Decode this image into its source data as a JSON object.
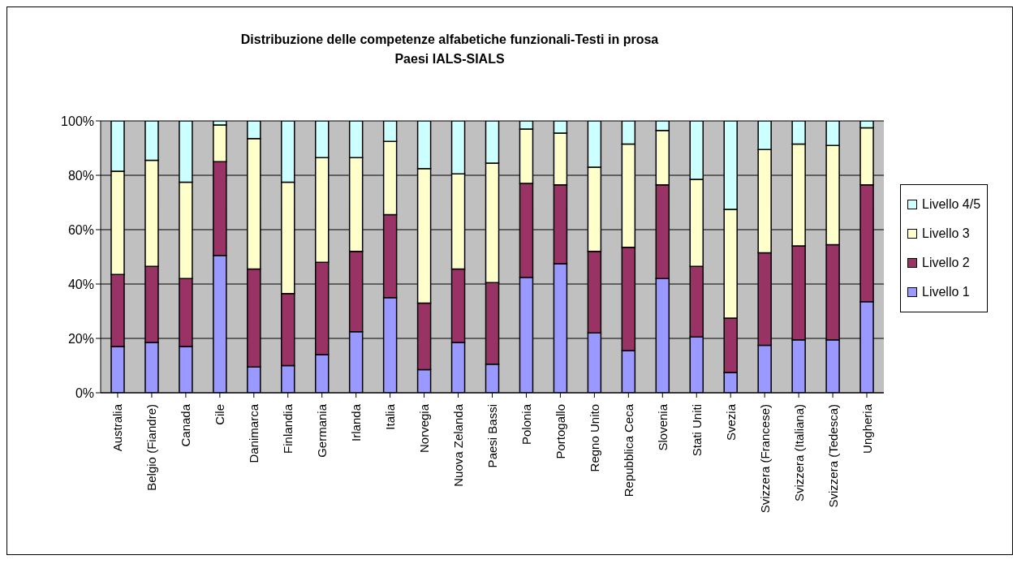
{
  "chart_data": {
    "type": "bar",
    "title": "Distribuzione delle competenze alfabetiche funzionali-Testi in prosa",
    "subtitle": "Paesi IALS-SIALS",
    "stacked": true,
    "categories": [
      "Australia",
      "Belgio (Fiandre)",
      "Canada",
      "Cile",
      "Danimarca",
      "Finlandia",
      "Germania",
      "Irlanda",
      "Italia",
      "Norvegia",
      "Nuova Zelanda",
      "Paesi Bassi",
      "Polonia",
      "Portogallo",
      "Regno Unito",
      "Repubblica Ceca",
      "Slovenia",
      "Stati Uniti",
      "Svezia",
      "Svizzera (Francese)",
      "Svizzera (Italiana)",
      "Svizzera (Tedesca)",
      "Ungheria"
    ],
    "series": [
      {
        "name": "Livello 1",
        "color": "#9999ff",
        "values": [
          17,
          18.5,
          17,
          50.5,
          9.5,
          10,
          14,
          22.5,
          35,
          8.5,
          18.5,
          10.5,
          42.5,
          47.5,
          22,
          15.5,
          42,
          20.5,
          7.5,
          17.5,
          19.5,
          19.5,
          33.5
        ]
      },
      {
        "name": "Livello 2",
        "color": "#993366",
        "values": [
          26.5,
          28,
          25,
          34.5,
          36,
          26.5,
          34,
          29.5,
          30.5,
          24.5,
          27,
          30,
          34.5,
          29,
          30,
          38,
          34.5,
          26,
          20,
          34,
          34.5,
          35,
          43
        ]
      },
      {
        "name": "Livello 3",
        "color": "#ffffcc",
        "values": [
          38,
          39,
          35.5,
          13.5,
          48,
          41,
          38.5,
          34.5,
          27,
          49.5,
          35,
          44,
          20,
          19,
          31,
          38,
          20,
          32,
          40,
          38,
          37.5,
          36.5,
          21
        ]
      },
      {
        "name": "Livello 4/5",
        "color": "#ccffff",
        "values": [
          18.5,
          14.5,
          22.5,
          1.5,
          6.5,
          22.5,
          13.5,
          13.5,
          7.5,
          17.5,
          19.5,
          15.5,
          3,
          4.5,
          17,
          8.5,
          3.5,
          21.5,
          32.5,
          10.5,
          8.5,
          9,
          2.5
        ]
      }
    ],
    "ylim": [
      0,
      100
    ],
    "yticks": [
      {
        "value": 0,
        "label": "0%"
      },
      {
        "value": 20,
        "label": "20%"
      },
      {
        "value": 40,
        "label": "40%"
      },
      {
        "value": 60,
        "label": "60%"
      },
      {
        "value": 80,
        "label": "80%"
      },
      {
        "value": 100,
        "label": "100%"
      }
    ],
    "grid": "y",
    "legend": "right"
  }
}
